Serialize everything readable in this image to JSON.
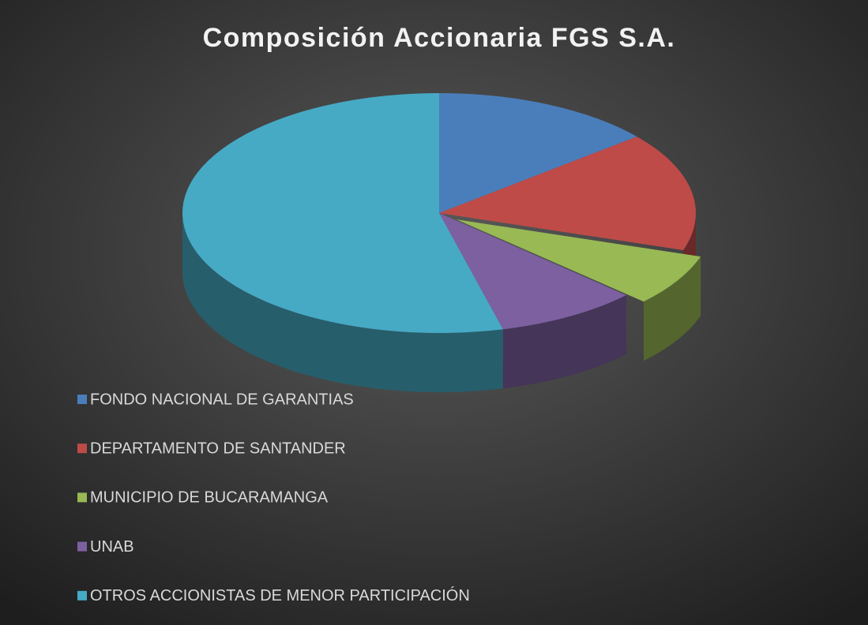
{
  "chart_data": {
    "type": "pie",
    "title": "Composición Accionaria FGS S.A.",
    "categories": [
      "FONDO NACIONAL DE GARANTIAS",
      "DEPARTAMENTO DE SANTANDER",
      "MUNICIPIO DE BUCARAMANGA",
      "UNAB",
      "OTROS ACCIONISTAS DE MENOR PARTICIPACIÓN"
    ],
    "values": [
      14,
      16,
      7,
      9,
      54
    ],
    "colors": [
      "#4a7ebb",
      "#be4b48",
      "#98b954",
      "#7d60a0",
      "#46aac5"
    ],
    "exploded": [
      false,
      false,
      true,
      false,
      false
    ],
    "legend": "bottom-left"
  }
}
